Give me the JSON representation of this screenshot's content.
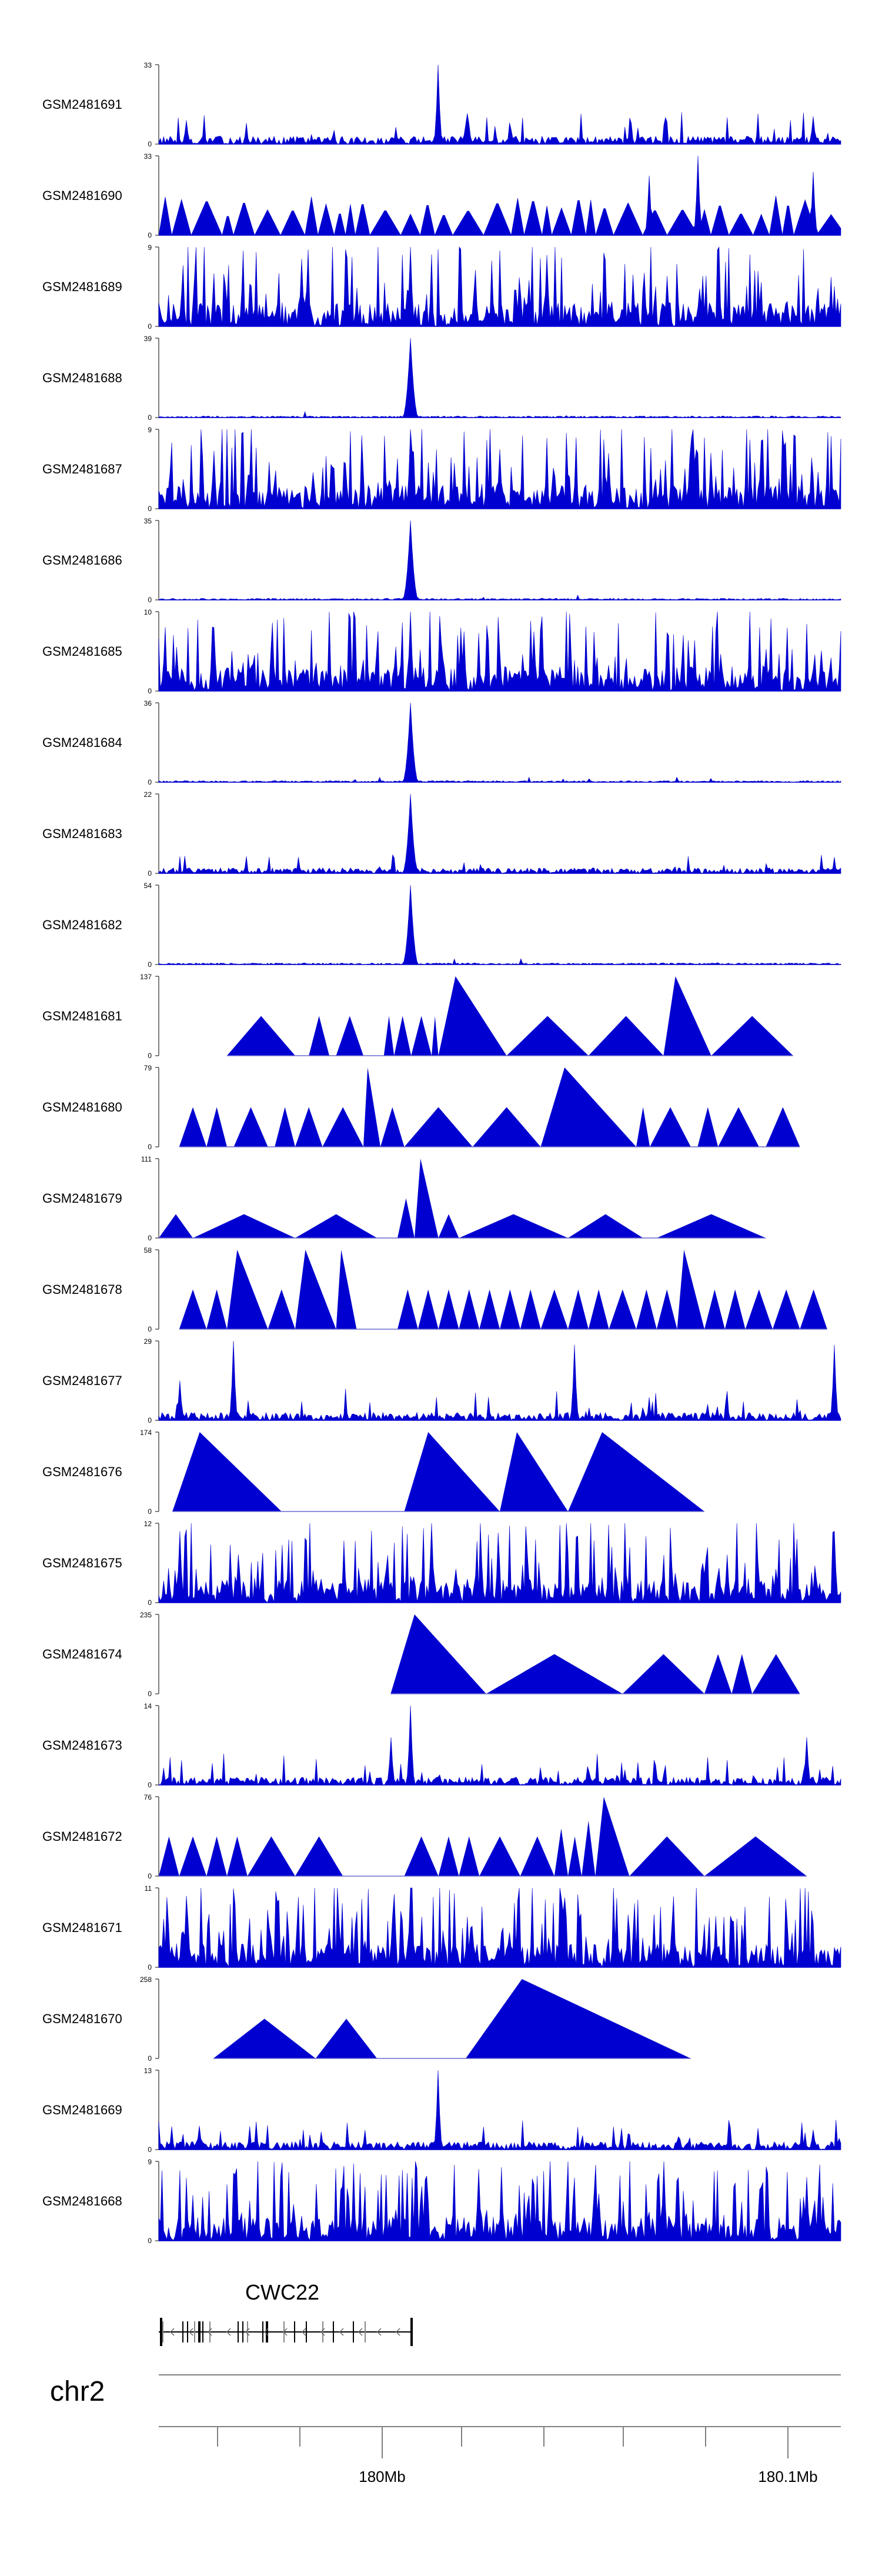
{
  "chart_data": {
    "type": "area",
    "title": "",
    "chromosome": "chr2",
    "gene": {
      "name": "CWC22",
      "strand": "-"
    },
    "x_axis": {
      "tick_labels": [
        "180Mb",
        "180.1Mb"
      ]
    },
    "tracks": [
      {
        "name": "GSM2481691",
        "ymax": 33,
        "pattern": "dense-low",
        "peaks": [
          [
            0.41,
            1.0
          ],
          [
            0.04,
            0.3
          ],
          [
            0.96,
            0.35
          ],
          [
            0.45,
            0.25
          ]
        ]
      },
      {
        "name": "GSM2481690",
        "ymax": 33,
        "pattern": "triangles-dense",
        "peaks": [
          [
            0.79,
            1.0
          ],
          [
            0.72,
            0.75
          ],
          [
            0.96,
            0.8
          ]
        ]
      },
      {
        "name": "GSM2481689",
        "ymax": 9,
        "pattern": "dense-mid",
        "peaks": [
          [
            0.37,
            1.0
          ],
          [
            0.57,
            0.9
          ],
          [
            0.21,
            0.85
          ]
        ]
      },
      {
        "name": "GSM2481688",
        "ymax": 39,
        "pattern": "spike",
        "peaks": [
          [
            0.37,
            1.0
          ]
        ]
      },
      {
        "name": "GSM2481687",
        "ymax": 9,
        "pattern": "dense-mid",
        "peaks": [
          [
            0.37,
            1.0
          ],
          [
            0.5,
            0.75
          ],
          [
            0.66,
            0.7
          ]
        ]
      },
      {
        "name": "GSM2481686",
        "ymax": 35,
        "pattern": "spike",
        "peaks": [
          [
            0.37,
            1.0
          ]
        ]
      },
      {
        "name": "GSM2481685",
        "ymax": 10,
        "pattern": "dense-mid",
        "peaks": [
          [
            0.37,
            1.0
          ],
          [
            0.08,
            0.8
          ],
          [
            0.55,
            0.75
          ]
        ]
      },
      {
        "name": "GSM2481684",
        "ymax": 36,
        "pattern": "spike",
        "peaks": [
          [
            0.37,
            1.0
          ]
        ]
      },
      {
        "name": "GSM2481683",
        "ymax": 22,
        "pattern": "spike-noise",
        "peaks": [
          [
            0.37,
            1.0
          ]
        ]
      },
      {
        "name": "GSM2481682",
        "ymax": 54,
        "pattern": "spike",
        "peaks": [
          [
            0.37,
            1.0
          ]
        ]
      },
      {
        "name": "GSM2481681",
        "ymax": 137,
        "pattern": "sparse-triangles",
        "triangles": [
          [
            0.1,
            0.2,
            0.5
          ],
          [
            0.22,
            0.25,
            0.5
          ],
          [
            0.26,
            0.3,
            0.5
          ],
          [
            0.33,
            0.345,
            0.5
          ],
          [
            0.345,
            0.37,
            0.5
          ],
          [
            0.37,
            0.4,
            0.5
          ],
          [
            0.4,
            0.41,
            0.5
          ],
          [
            0.41,
            0.51,
            1.0
          ],
          [
            0.51,
            0.63,
            0.5
          ],
          [
            0.63,
            0.74,
            0.5
          ],
          [
            0.74,
            0.81,
            1.0
          ],
          [
            0.81,
            0.93,
            0.5
          ]
        ]
      },
      {
        "name": "GSM2481680",
        "ymax": 79,
        "pattern": "sparse-triangles",
        "triangles": [
          [
            0.03,
            0.07,
            0.5
          ],
          [
            0.07,
            0.1,
            0.5
          ],
          [
            0.11,
            0.16,
            0.5
          ],
          [
            0.17,
            0.2,
            0.5
          ],
          [
            0.2,
            0.24,
            0.5
          ],
          [
            0.24,
            0.3,
            0.5
          ],
          [
            0.3,
            0.325,
            1.0
          ],
          [
            0.325,
            0.36,
            0.5
          ],
          [
            0.36,
            0.46,
            0.5
          ],
          [
            0.46,
            0.56,
            0.5
          ],
          [
            0.56,
            0.7,
            1.0
          ],
          [
            0.7,
            0.72,
            0.5
          ],
          [
            0.72,
            0.78,
            0.5
          ],
          [
            0.79,
            0.82,
            0.5
          ],
          [
            0.82,
            0.88,
            0.5
          ],
          [
            0.89,
            0.94,
            0.5
          ]
        ]
      },
      {
        "name": "GSM2481679",
        "ymax": 111,
        "pattern": "sparse-triangles",
        "triangles": [
          [
            0.0,
            0.05,
            0.3
          ],
          [
            0.05,
            0.2,
            0.3
          ],
          [
            0.2,
            0.32,
            0.3
          ],
          [
            0.35,
            0.375,
            0.5
          ],
          [
            0.375,
            0.41,
            1.0
          ],
          [
            0.41,
            0.44,
            0.3
          ],
          [
            0.44,
            0.6,
            0.3
          ],
          [
            0.6,
            0.71,
            0.3
          ],
          [
            0.73,
            0.89,
            0.3
          ]
        ]
      },
      {
        "name": "GSM2481678",
        "ymax": 58,
        "pattern": "sparse-triangles",
        "triangles": [
          [
            0.03,
            0.07,
            0.5
          ],
          [
            0.07,
            0.1,
            0.5
          ],
          [
            0.1,
            0.16,
            1.0
          ],
          [
            0.16,
            0.2,
            0.5
          ],
          [
            0.2,
            0.26,
            1.0
          ],
          [
            0.26,
            0.29,
            1.0
          ],
          [
            0.35,
            0.38,
            0.5
          ],
          [
            0.38,
            0.41,
            0.5
          ],
          [
            0.41,
            0.44,
            0.5
          ],
          [
            0.44,
            0.47,
            0.5
          ],
          [
            0.47,
            0.5,
            0.5
          ],
          [
            0.5,
            0.53,
            0.5
          ],
          [
            0.53,
            0.56,
            0.5
          ],
          [
            0.56,
            0.6,
            0.5
          ],
          [
            0.6,
            0.63,
            0.5
          ],
          [
            0.63,
            0.66,
            0.5
          ],
          [
            0.66,
            0.7,
            0.5
          ],
          [
            0.7,
            0.73,
            0.5
          ],
          [
            0.73,
            0.76,
            0.5
          ],
          [
            0.76,
            0.8,
            1.0
          ],
          [
            0.8,
            0.83,
            0.5
          ],
          [
            0.83,
            0.86,
            0.5
          ],
          [
            0.86,
            0.9,
            0.5
          ],
          [
            0.9,
            0.94,
            0.5
          ],
          [
            0.94,
            0.98,
            0.5
          ]
        ]
      },
      {
        "name": "GSM2481677",
        "ymax": 29,
        "pattern": "dense-low",
        "peaks": [
          [
            0.11,
            1.0
          ],
          [
            0.61,
            0.95
          ],
          [
            0.99,
            0.95
          ],
          [
            0.03,
            0.5
          ]
        ]
      },
      {
        "name": "GSM2481676",
        "ymax": 174,
        "pattern": "sparse-triangles",
        "triangles": [
          [
            0.02,
            0.18,
            1.0
          ],
          [
            0.36,
            0.5,
            1.0
          ],
          [
            0.5,
            0.6,
            1.0
          ],
          [
            0.6,
            0.8,
            1.0
          ]
        ]
      },
      {
        "name": "GSM2481675",
        "ymax": 12,
        "pattern": "dense-mid",
        "peaks": [
          [
            0.4,
            1.0
          ],
          [
            0.03,
            0.9
          ],
          [
            0.99,
            0.9
          ]
        ]
      },
      {
        "name": "GSM2481674",
        "ymax": 235,
        "pattern": "sparse-triangles",
        "triangles": [
          [
            0.34,
            0.48,
            1.0
          ],
          [
            0.48,
            0.68,
            0.5
          ],
          [
            0.68,
            0.8,
            0.5
          ],
          [
            0.8,
            0.84,
            0.5
          ],
          [
            0.84,
            0.87,
            0.5
          ],
          [
            0.87,
            0.94,
            0.5
          ]
        ]
      },
      {
        "name": "GSM2481673",
        "ymax": 14,
        "pattern": "dense-low",
        "peaks": [
          [
            0.37,
            1.0
          ],
          [
            0.34,
            0.6
          ],
          [
            0.95,
            0.6
          ]
        ]
      },
      {
        "name": "GSM2481672",
        "ymax": 76,
        "pattern": "sparse-triangles",
        "triangles": [
          [
            0.0,
            0.03,
            0.5
          ],
          [
            0.03,
            0.07,
            0.5
          ],
          [
            0.07,
            0.1,
            0.5
          ],
          [
            0.1,
            0.13,
            0.5
          ],
          [
            0.13,
            0.2,
            0.5
          ],
          [
            0.2,
            0.27,
            0.5
          ],
          [
            0.36,
            0.41,
            0.5
          ],
          [
            0.41,
            0.44,
            0.5
          ],
          [
            0.44,
            0.47,
            0.5
          ],
          [
            0.47,
            0.53,
            0.5
          ],
          [
            0.53,
            0.58,
            0.5
          ],
          [
            0.58,
            0.6,
            0.6
          ],
          [
            0.6,
            0.62,
            0.5
          ],
          [
            0.62,
            0.64,
            0.7
          ],
          [
            0.64,
            0.69,
            1.0
          ],
          [
            0.69,
            0.8,
            0.5
          ],
          [
            0.8,
            0.95,
            0.5
          ]
        ]
      },
      {
        "name": "GSM2481671",
        "ymax": 11,
        "pattern": "dense-mid",
        "peaks": [
          [
            0.37,
            1.0
          ],
          [
            0.04,
            0.9
          ]
        ]
      },
      {
        "name": "GSM2481670",
        "ymax": 258,
        "pattern": "sparse-triangles",
        "triangles": [
          [
            0.08,
            0.23,
            0.5
          ],
          [
            0.23,
            0.32,
            0.5
          ],
          [
            0.45,
            0.78,
            1.0
          ]
        ]
      },
      {
        "name": "GSM2481669",
        "ymax": 13,
        "pattern": "dense-low",
        "peaks": [
          [
            0.41,
            1.0
          ],
          [
            0.06,
            0.3
          ],
          [
            0.96,
            0.25
          ]
        ]
      },
      {
        "name": "GSM2481668",
        "ymax": 9,
        "pattern": "dense-mid",
        "peaks": [
          [
            0.74,
            1.0
          ],
          [
            0.47,
            0.9
          ],
          [
            0.95,
            0.8
          ]
        ]
      }
    ]
  }
}
